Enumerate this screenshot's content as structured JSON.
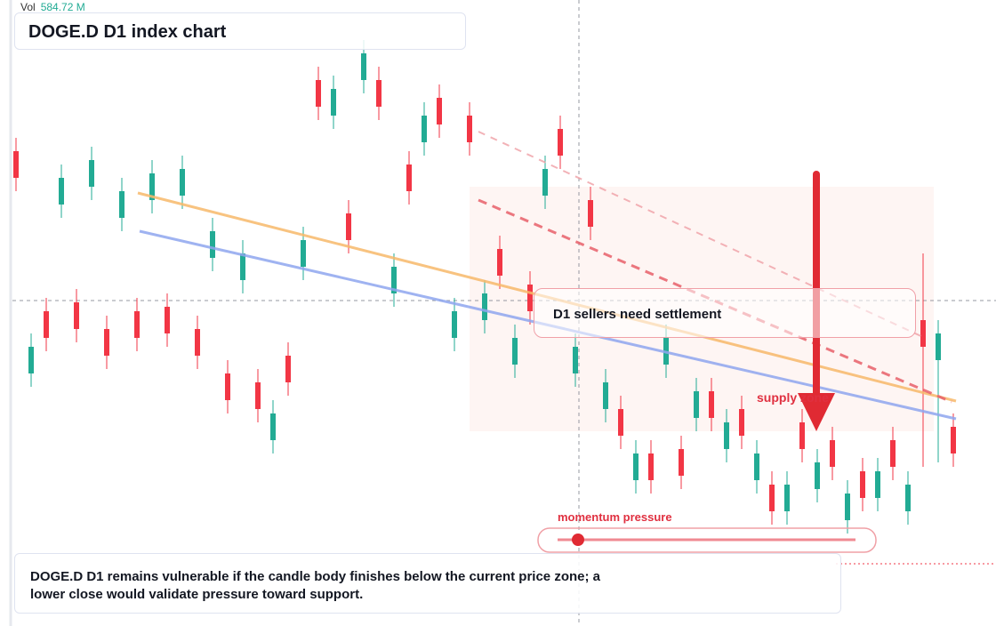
{
  "chart_data": {
    "type": "candlestick",
    "title": "DOGE.D D1 index chart",
    "volume_title": "Vol",
    "volume_label": "584.72 M",
    "annotations": {
      "sellers": "D1 sellers need settlement",
      "zone": "supply zone",
      "momentum": "momentum pressure",
      "summary": "DOGE.D D1 remains vulnerable if the candle body finishes below the current price zone; a lower close would validate pressure toward support."
    },
    "ylim": [
      0,
      70.4
    ],
    "up_color": "#22ab94",
    "down_color": "#f23645",
    "open": [
      53.4,
      28.4,
      35.4,
      47.4,
      36.4,
      49.4,
      33.4,
      45.9,
      35.4,
      47.9,
      35.9,
      48.4,
      33.4,
      41.4,
      28.4,
      38.9,
      27.4,
      20.9,
      30.4,
      40.4,
      61.4,
      57.4,
      46.4,
      61.4,
      61.4,
      37.4,
      51.9,
      54.4,
      59.4,
      32.4,
      57.4,
      34.4,
      42.4,
      29.4,
      38.4,
      48.4,
      55.9,
      28.4,
      47.9,
      24.4,
      24.4,
      16.4,
      19.4,
      29.4,
      19.9,
      23.4,
      26.4,
      19.9,
      24.4,
      16.4,
      15.9,
      12.9,
      22.9,
      15.4,
      20.9,
      11.9,
      17.4,
      14.4,
      20.9,
      12.9,
      34.4,
      29.9,
      22.4
    ],
    "high": [
      54.9,
      32.9,
      36.9,
      51.9,
      37.9,
      53.9,
      34.9,
      50.4,
      36.9,
      52.4,
      37.4,
      52.9,
      34.9,
      45.9,
      29.9,
      43.4,
      28.9,
      25.4,
      31.9,
      44.9,
      62.9,
      61.9,
      47.9,
      65.9,
      62.9,
      41.9,
      53.4,
      58.9,
      60.9,
      36.9,
      58.9,
      38.9,
      43.9,
      33.9,
      39.9,
      52.9,
      57.4,
      32.9,
      49.4,
      28.9,
      25.9,
      20.9,
      20.9,
      33.9,
      21.4,
      27.9,
      27.9,
      24.4,
      25.9,
      20.9,
      17.4,
      17.4,
      24.4,
      19.9,
      22.4,
      16.4,
      18.9,
      18.9,
      22.4,
      17.4,
      41.9,
      34.4,
      23.9
    ],
    "low": [
      48.9,
      26.9,
      30.9,
      45.9,
      31.9,
      47.9,
      28.9,
      44.4,
      30.9,
      46.4,
      31.4,
      46.9,
      28.9,
      39.9,
      23.9,
      37.4,
      22.9,
      19.4,
      25.9,
      38.9,
      56.9,
      55.9,
      41.9,
      59.9,
      56.9,
      35.9,
      47.4,
      52.9,
      54.9,
      30.9,
      52.9,
      32.9,
      37.9,
      27.9,
      33.9,
      46.9,
      51.4,
      26.9,
      43.4,
      22.9,
      19.9,
      14.9,
      14.9,
      27.9,
      15.4,
      21.9,
      21.9,
      18.4,
      19.9,
      14.9,
      11.4,
      11.4,
      18.4,
      13.9,
      16.4,
      10.4,
      12.9,
      12.9,
      16.4,
      11.4,
      17.9,
      18.4,
      17.9
    ],
    "close": [
      50.4,
      31.4,
      32.4,
      50.4,
      33.4,
      52.4,
      30.4,
      48.9,
      32.4,
      50.9,
      32.9,
      51.4,
      30.4,
      44.4,
      25.4,
      41.9,
      24.4,
      23.9,
      27.4,
      43.4,
      58.4,
      60.4,
      43.4,
      64.4,
      58.4,
      40.4,
      48.9,
      57.4,
      56.4,
      35.4,
      54.4,
      37.4,
      39.4,
      32.4,
      35.4,
      51.4,
      52.9,
      31.4,
      44.9,
      27.4,
      21.4,
      19.4,
      16.4,
      32.4,
      16.9,
      26.4,
      23.4,
      22.9,
      21.4,
      19.4,
      12.9,
      15.9,
      19.9,
      18.4,
      17.9,
      14.9,
      14.4,
      17.4,
      17.9,
      15.9,
      31.4,
      32.9,
      19.4
    ]
  }
}
